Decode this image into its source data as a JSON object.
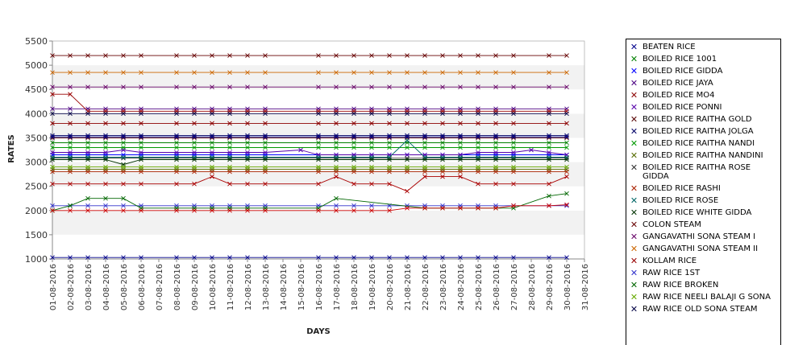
{
  "chart_data": {
    "type": "line",
    "title": "",
    "xlabel": "DAYS",
    "ylabel": "RATES",
    "ylim": [
      1000,
      5500
    ],
    "yticks": [
      1000,
      1500,
      2000,
      2500,
      3000,
      3500,
      4000,
      4500,
      5000,
      5500
    ],
    "categories": [
      "01-08-2016",
      "02-08-2016",
      "03-08-2016",
      "04-08-2016",
      "05-08-2016",
      "06-08-2016",
      "07-08-2016",
      "08-08-2016",
      "09-08-2016",
      "10-08-2016",
      "11-08-2016",
      "12-08-2016",
      "13-08-2016",
      "14-08-2016",
      "15-08-2016",
      "16-08-2016",
      "17-08-2016",
      "18-08-2016",
      "19-08-2016",
      "20-08-2016",
      "21-08-2016",
      "22-08-2016",
      "23-08-2016",
      "24-08-2016",
      "25-08-2016",
      "26-08-2016",
      "27-08-2016",
      "28-08-2016",
      "29-08-2016",
      "30-08-2016",
      "31-08-2016"
    ],
    "grid": "alternating horizontal bands",
    "legend_position": "right",
    "series": [
      {
        "name": "BEATEN RICE",
        "color": "#00008b",
        "values": [
          1030,
          1030,
          1030,
          1030,
          1030,
          1030,
          null,
          1030,
          1030,
          1030,
          1030,
          1030,
          1030,
          null,
          null,
          1030,
          1030,
          1030,
          1030,
          1030,
          1030,
          1030,
          1030,
          1030,
          1030,
          1030,
          1030,
          null,
          1030,
          1030,
          null
        ]
      },
      {
        "name": "BOILED RICE 1001",
        "color": "#008000",
        "values": [
          3400,
          3400,
          3400,
          3400,
          3400,
          3400,
          null,
          3400,
          3400,
          3400,
          3400,
          3400,
          3400,
          null,
          null,
          3400,
          3400,
          3400,
          3400,
          3400,
          3400,
          3400,
          3400,
          3400,
          3400,
          3400,
          3400,
          null,
          3400,
          3400,
          null
        ]
      },
      {
        "name": "BOILED RICE GIDDA",
        "color": "#0000ff",
        "values": [
          3150,
          3150,
          3150,
          3150,
          3150,
          3150,
          null,
          3150,
          3150,
          3150,
          3150,
          3150,
          3150,
          null,
          null,
          3150,
          3150,
          3150,
          3150,
          3150,
          3150,
          3150,
          3150,
          3150,
          3150,
          3150,
          3150,
          null,
          3150,
          3150,
          null
        ]
      },
      {
        "name": "BOILED RICE JAYA",
        "color": "#4b0082",
        "values": [
          4100,
          4100,
          4100,
          4100,
          4100,
          4100,
          null,
          4100,
          4100,
          4100,
          4100,
          4100,
          4100,
          null,
          null,
          4100,
          4100,
          4100,
          4100,
          4100,
          4100,
          4100,
          4100,
          4100,
          4100,
          4100,
          4100,
          null,
          4100,
          4100,
          null
        ]
      },
      {
        "name": "BOILED RICE MO4",
        "color": "#8b0000",
        "values": [
          3800,
          3800,
          3800,
          3800,
          3800,
          3800,
          null,
          3800,
          3800,
          3800,
          3800,
          3800,
          3800,
          null,
          null,
          3800,
          3800,
          3800,
          3800,
          3800,
          3800,
          3800,
          3800,
          3800,
          3800,
          3800,
          3800,
          null,
          3800,
          3800,
          null
        ]
      },
      {
        "name": "BOILED RICE PONNI",
        "color": "#5500aa",
        "values": [
          3200,
          3200,
          3200,
          3200,
          3250,
          3200,
          null,
          3200,
          3200,
          3200,
          3200,
          3200,
          3200,
          null,
          3250,
          3150,
          3150,
          3150,
          3150,
          3150,
          3150,
          3150,
          3150,
          3150,
          3200,
          3200,
          3200,
          3250,
          3200,
          3150,
          null
        ]
      },
      {
        "name": "BOILED RICE RAITHA GOLD",
        "color": "#550000",
        "values": [
          3500,
          3500,
          3500,
          3500,
          3500,
          3500,
          null,
          3500,
          3500,
          3500,
          3500,
          3500,
          3500,
          null,
          null,
          3500,
          3500,
          3500,
          3500,
          3500,
          3500,
          3500,
          3500,
          3500,
          3500,
          3500,
          3500,
          null,
          3500,
          3500,
          null
        ]
      },
      {
        "name": "BOILED RICE RAITHA JOLGA",
        "color": "#000066",
        "values": [
          3550,
          3550,
          3550,
          3550,
          3550,
          3550,
          null,
          3550,
          3550,
          3550,
          3550,
          3550,
          3550,
          null,
          null,
          3550,
          3550,
          3550,
          3550,
          3550,
          3550,
          3550,
          3550,
          3550,
          3550,
          3550,
          3550,
          null,
          3550,
          3550,
          null
        ]
      },
      {
        "name": "BOILED RICE RAITHA NANDI",
        "color": "#009900",
        "values": [
          3300,
          3300,
          3300,
          3300,
          3300,
          3300,
          null,
          3300,
          3300,
          3300,
          3300,
          3300,
          3300,
          null,
          null,
          3300,
          3300,
          3300,
          3300,
          3300,
          3300,
          3300,
          3300,
          3300,
          3300,
          3300,
          3300,
          null,
          3300,
          3300,
          null
        ]
      },
      {
        "name": "BOILED RICE RAITHA NANDINI",
        "color": "#556b00",
        "values": [
          2850,
          2850,
          2850,
          2850,
          2850,
          2850,
          null,
          2850,
          2850,
          2850,
          2850,
          2850,
          2850,
          null,
          null,
          2850,
          2850,
          2850,
          2850,
          2850,
          2850,
          2850,
          2850,
          2850,
          2850,
          2850,
          2850,
          null,
          2850,
          2850,
          null
        ]
      },
      {
        "name": "BOILED RICE RAITHA ROSE GIDDA",
        "color": "#333333",
        "values": [
          3080,
          3080,
          3080,
          3080,
          3080,
          3080,
          null,
          3080,
          3080,
          3080,
          3080,
          3080,
          3080,
          null,
          null,
          3080,
          3080,
          3080,
          3080,
          3080,
          3080,
          3080,
          3080,
          3080,
          3080,
          3080,
          3080,
          null,
          3080,
          3080,
          null
        ]
      },
      {
        "name": "BOILED RICE RASHI",
        "color": "#aa2200",
        "values": [
          2800,
          2800,
          2800,
          2800,
          2800,
          2800,
          null,
          2800,
          2800,
          2800,
          2800,
          2800,
          2800,
          null,
          null,
          2800,
          2800,
          2800,
          2800,
          2800,
          2800,
          2800,
          2800,
          2800,
          2800,
          2800,
          2800,
          null,
          2800,
          2800,
          null
        ]
      },
      {
        "name": "BOILED RICE ROSE",
        "color": "#006666",
        "values": [
          3100,
          3100,
          3100,
          3100,
          3100,
          3100,
          null,
          3100,
          3100,
          3100,
          3100,
          3100,
          3100,
          null,
          null,
          3100,
          3100,
          3100,
          3100,
          3100,
          3450,
          3100,
          3100,
          3100,
          3100,
          3100,
          3100,
          null,
          3100,
          3100,
          null
        ]
      },
      {
        "name": "BOILED RICE WHITE GIDDA",
        "color": "#003300",
        "values": [
          3050,
          3050,
          3050,
          3050,
          2950,
          3050,
          null,
          3050,
          3050,
          3050,
          3050,
          3050,
          3050,
          null,
          null,
          3050,
          3050,
          3050,
          3050,
          3050,
          3050,
          3050,
          3050,
          3050,
          3050,
          3050,
          3050,
          null,
          3050,
          3050,
          null
        ]
      },
      {
        "name": "COLON STEAM",
        "color": "#660000",
        "values": [
          5200,
          5200,
          5200,
          5200,
          5200,
          5200,
          null,
          5200,
          5200,
          5200,
          5200,
          5200,
          5200,
          null,
          null,
          5200,
          5200,
          5200,
          5200,
          5200,
          5200,
          5200,
          5200,
          5200,
          5200,
          5200,
          5200,
          null,
          5200,
          5200,
          null
        ]
      },
      {
        "name": "GANGAVATHI SONA STEAM I",
        "color": "#660066",
        "values": [
          4550,
          4550,
          4550,
          4550,
          4550,
          4550,
          null,
          4550,
          4550,
          4550,
          4550,
          4550,
          4550,
          null,
          null,
          4550,
          4550,
          4550,
          4550,
          4550,
          4550,
          4550,
          4550,
          4550,
          4550,
          4550,
          4550,
          null,
          4550,
          4550,
          null
        ]
      },
      {
        "name": "GANGAVATHI SONA STEAM II",
        "color": "#cc6600",
        "values": [
          4850,
          4850,
          4850,
          4850,
          4850,
          4850,
          null,
          4850,
          4850,
          4850,
          4850,
          4850,
          4850,
          null,
          null,
          4850,
          4850,
          4850,
          4850,
          4850,
          4850,
          4850,
          4850,
          4850,
          4850,
          4850,
          4850,
          null,
          4850,
          4850,
          null
        ]
      },
      {
        "name": "KOLLAM RICE",
        "color": "#990000",
        "values": [
          4400,
          4400,
          4050,
          4050,
          4050,
          4050,
          null,
          4050,
          4050,
          4050,
          4050,
          4050,
          4050,
          null,
          null,
          4050,
          4050,
          4050,
          4050,
          4050,
          4050,
          4050,
          4050,
          4050,
          4050,
          4050,
          4050,
          null,
          4050,
          4050,
          null
        ]
      },
      {
        "name": "RAW RICE 1ST",
        "color": "#3333cc",
        "values": [
          2100,
          2100,
          2100,
          2100,
          2100,
          2100,
          null,
          2100,
          2100,
          2100,
          2100,
          2100,
          2100,
          null,
          null,
          2100,
          2100,
          2100,
          2100,
          2100,
          2100,
          2100,
          2100,
          2100,
          2100,
          2100,
          2100,
          null,
          2100,
          2100,
          null
        ]
      },
      {
        "name": "RAW RICE BROKEN",
        "color": "#006600",
        "values": [
          2000,
          2100,
          2250,
          2250,
          2250,
          2050,
          null,
          2050,
          2050,
          2050,
          2050,
          2050,
          2050,
          null,
          null,
          2050,
          2250,
          null,
          null,
          null,
          null,
          2050,
          2050,
          2050,
          2050,
          2050,
          2050,
          null,
          2300,
          2350,
          null
        ]
      },
      {
        "name": "RAW RICE NEELI BALAJI G SONA",
        "color": "#66aa00",
        "values": [
          2900,
          2900,
          2900,
          2900,
          2900,
          2900,
          null,
          2900,
          2900,
          2900,
          2900,
          2900,
          2900,
          null,
          null,
          2900,
          2900,
          2900,
          2900,
          2900,
          2900,
          2900,
          2900,
          2900,
          2900,
          2900,
          2900,
          null,
          2900,
          2900,
          null
        ]
      },
      {
        "name": "RAW RICE OLD SONA STEAM",
        "color": "#000044",
        "values": [
          4000,
          4000,
          4000,
          4000,
          4000,
          4000,
          null,
          4000,
          4000,
          4000,
          4000,
          4000,
          4000,
          null,
          null,
          4000,
          4000,
          4000,
          4000,
          4000,
          4000,
          4000,
          4000,
          4000,
          4000,
          4000,
          4000,
          null,
          4000,
          4000,
          null
        ]
      },
      {
        "name": "",
        "color": "#aa0000",
        "values": [
          2550,
          2550,
          2550,
          2550,
          2550,
          2550,
          null,
          2550,
          2550,
          2700,
          2550,
          2550,
          2550,
          null,
          null,
          2550,
          2700,
          2550,
          2550,
          2550,
          2400,
          2700,
          2700,
          2700,
          2550,
          2550,
          2550,
          null,
          2550,
          2700,
          null
        ]
      },
      {
        "name": "",
        "color": "#cc0000",
        "values": [
          2000,
          2000,
          2000,
          2000,
          2000,
          2000,
          null,
          2000,
          2000,
          2000,
          2000,
          2000,
          2000,
          null,
          null,
          2000,
          2000,
          2000,
          2000,
          2000,
          2050,
          2050,
          2050,
          2050,
          2050,
          2050,
          2100,
          null,
          2100,
          2120,
          null
        ]
      },
      {
        "name": "",
        "color": "#000088",
        "values": [
          3520,
          3520,
          3520,
          3520,
          3520,
          3520,
          null,
          3520,
          3520,
          3520,
          3520,
          3520,
          3520,
          null,
          null,
          3520,
          3520,
          3520,
          3520,
          3520,
          3520,
          3520,
          3520,
          3520,
          3520,
          3520,
          3520,
          null,
          3520,
          3520,
          null
        ]
      }
    ]
  },
  "legend_items": [
    {
      "label": "BEATEN RICE",
      "color": "#00008b"
    },
    {
      "label": "BOILED RICE 1001",
      "color": "#008000"
    },
    {
      "label": "BOILED RICE GIDDA",
      "color": "#0000ff"
    },
    {
      "label": "BOILED RICE JAYA",
      "color": "#4b0082"
    },
    {
      "label": "BOILED RICE MO4",
      "color": "#8b0000"
    },
    {
      "label": "BOILED RICE PONNI",
      "color": "#5500aa"
    },
    {
      "label": "BOILED RICE RAITHA GOLD",
      "color": "#550000"
    },
    {
      "label": "BOILED RICE RAITHA JOLGA",
      "color": "#000066"
    },
    {
      "label": "BOILED RICE RAITHA NANDI",
      "color": "#009900"
    },
    {
      "label": "BOILED RICE RAITHA NANDINI",
      "color": "#556b00"
    },
    {
      "label": "BOILED RICE RAITHA ROSE GIDDA",
      "color": "#333333"
    },
    {
      "label": "BOILED RICE RASHI",
      "color": "#aa2200"
    },
    {
      "label": "BOILED RICE ROSE",
      "color": "#006666"
    },
    {
      "label": "BOILED RICE WHITE GIDDA",
      "color": "#003300"
    },
    {
      "label": "COLON STEAM",
      "color": "#660000"
    },
    {
      "label": "GANGAVATHI SONA STEAM I",
      "color": "#660066"
    },
    {
      "label": "GANGAVATHI SONA STEAM II",
      "color": "#cc6600"
    },
    {
      "label": "KOLLAM RICE",
      "color": "#990000"
    },
    {
      "label": "RAW RICE 1ST",
      "color": "#3333cc"
    },
    {
      "label": "RAW RICE BROKEN",
      "color": "#006600"
    },
    {
      "label": "RAW RICE NEELI BALAJI G SONA",
      "color": "#66aa00"
    },
    {
      "label": "RAW RICE OLD SONA STEAM",
      "color": "#000044"
    }
  ],
  "marker_icon": "x-marker-icon"
}
